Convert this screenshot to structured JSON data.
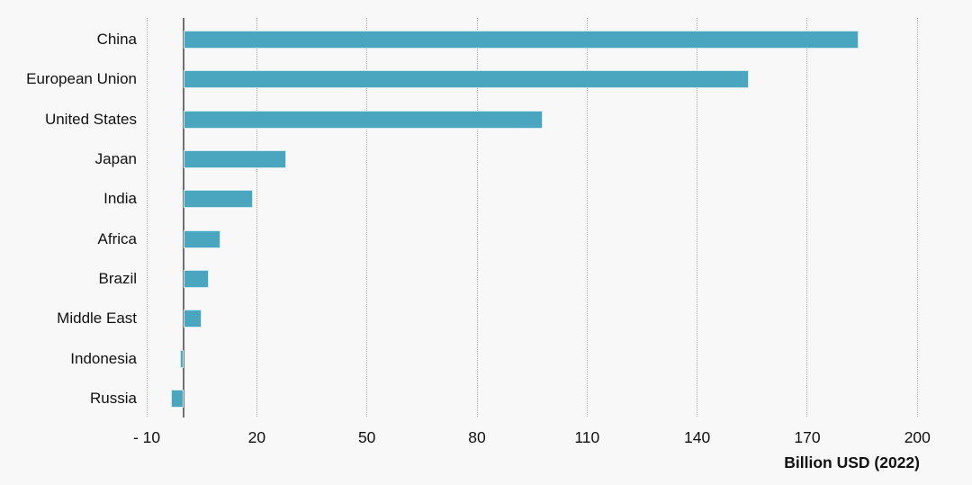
{
  "chart_data": {
    "type": "bar",
    "orientation": "horizontal",
    "title": "",
    "categories": [
      "China",
      "European Union",
      "United States",
      "Japan",
      "India",
      "Africa",
      "Brazil",
      "Middle East",
      "Indonesia",
      "Russia"
    ],
    "values": [
      184,
      154,
      98,
      28,
      19,
      10,
      7,
      5,
      -1,
      -3.5
    ],
    "xlabel": "Billion USD (2022)",
    "x_ticks": [
      {
        "label": "- 10",
        "value": -10
      },
      {
        "label": "20",
        "value": 20
      },
      {
        "label": "50",
        "value": 50
      },
      {
        "label": "80",
        "value": 80
      },
      {
        "label": "110",
        "value": 110
      },
      {
        "label": "140",
        "value": 140
      },
      {
        "label": "170",
        "value": 170
      },
      {
        "label": "200",
        "value": 200
      }
    ],
    "xlim": [
      -10,
      200
    ],
    "grid": "vertical-dotted",
    "legend": "none",
    "colors": {
      "bar_fill": "#49a6be",
      "bar_border": "#cfe7ee",
      "gridline": "#a9a9a9",
      "axis_line": "#707070",
      "text": "#111111",
      "background": "#f8f8f8"
    }
  }
}
